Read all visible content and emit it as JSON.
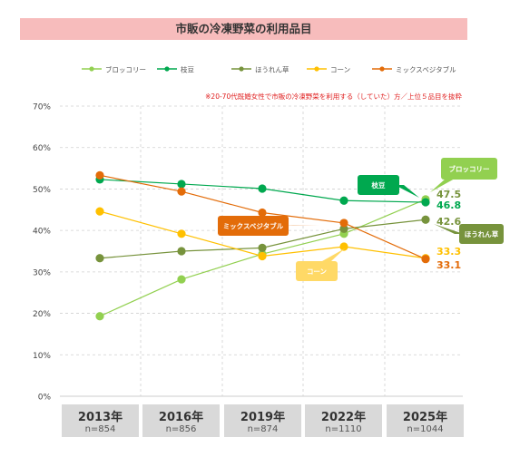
{
  "chart_data": {
    "type": "line",
    "title": "市販の冷凍野菜の利用品目",
    "note": "※20-70代既婚女性で市販の冷凍野菜を利用する（していた）方／上位５品目を抜粋",
    "categories": [
      "2013年",
      "2016年",
      "2019年",
      "2022年",
      "2025年"
    ],
    "sample_sizes": [
      "n=854",
      "n=856",
      "n=874",
      "n=1110",
      "n=1044"
    ],
    "y_ticks": [
      "0%",
      "10%",
      "20%",
      "30%",
      "40%",
      "50%",
      "60%",
      "70%"
    ],
    "ylim": [
      0,
      70
    ],
    "grid": true,
    "legend_position": "top",
    "series": [
      {
        "name": "ブロッコリー",
        "color": "#92d050",
        "values": [
          19.3,
          28.2,
          34.3,
          39.2,
          47.5
        ],
        "end_label": "47.5",
        "callout": "ブロッコリー"
      },
      {
        "name": "枝豆",
        "color": "#00a84f",
        "values": [
          52.3,
          51.2,
          50.1,
          47.2,
          46.8
        ],
        "end_label": "46.8",
        "callout": "枝豆"
      },
      {
        "name": "ほうれん草",
        "color": "#77933c",
        "values": [
          33.3,
          35.0,
          35.8,
          40.4,
          42.6
        ],
        "end_label": "42.6",
        "callout": "ほうれん草"
      },
      {
        "name": "コーン",
        "color": "#ffc000",
        "values": [
          44.6,
          39.2,
          33.8,
          36.1,
          33.3
        ],
        "end_label": "33.3",
        "callout": "コーン"
      },
      {
        "name": "ミックスベジタブル",
        "color": "#e36c09",
        "values": [
          53.3,
          49.4,
          44.3,
          41.8,
          33.1
        ],
        "end_label": "33.1",
        "callout": "ミックスベジタブル"
      }
    ]
  }
}
